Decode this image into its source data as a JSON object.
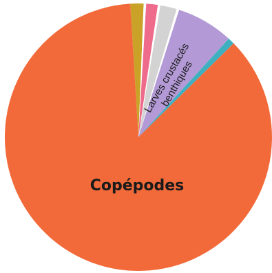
{
  "chart_data": {
    "type": "pie",
    "title": "",
    "legend": "none",
    "series": [
      {
        "slices": [
          {
            "label": "",
            "value": 1.6,
            "color": "#c9a227"
          },
          {
            "label": "",
            "value": 0.3,
            "color": "#ffffff"
          },
          {
            "label": "",
            "value": 1.4,
            "color": "#ee6b8c"
          },
          {
            "label": "",
            "value": 0.3,
            "color": "#ffffff"
          },
          {
            "label": "",
            "value": 2.0,
            "color": "#d3d3d3"
          },
          {
            "label": "",
            "value": 0.3,
            "color": "#ffffff"
          },
          {
            "label": "Larves crustacés benthiques",
            "label_lines": [
              "Larves crustacés",
              "benthiques"
            ],
            "value": 6.9,
            "color": "#b39ad6"
          },
          {
            "label": "",
            "value": 0.8,
            "color": "#3fb0c0"
          },
          {
            "label": "Copépodes",
            "value": 86.4,
            "color": "#f26a3a"
          }
        ]
      }
    ]
  }
}
